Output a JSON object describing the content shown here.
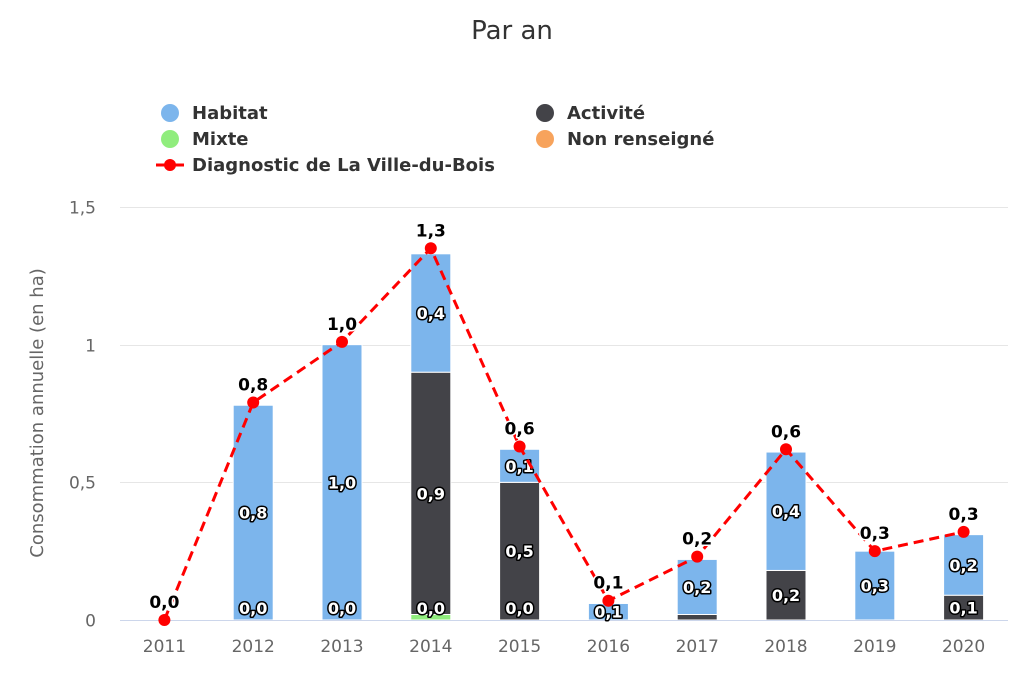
{
  "chart_data": {
    "type": "bar",
    "title": "Par an",
    "xlabel": "",
    "ylabel": "Consommation annuelle (en ha)",
    "ylim": [
      0,
      1.5
    ],
    "yticks": [
      0,
      0.5,
      1,
      1.5
    ],
    "ytick_labels": [
      "0",
      "0,5",
      "1",
      "1,5"
    ],
    "grid": true,
    "legend_position": "top",
    "categories": [
      "2011",
      "2012",
      "2013",
      "2014",
      "2015",
      "2016",
      "2017",
      "2018",
      "2019",
      "2020"
    ],
    "series": [
      {
        "name": "Habitat",
        "type": "bar",
        "stack": true,
        "color": "#7cb5ec",
        "values": [
          0,
          0.78,
          1.0,
          0.43,
          0.12,
          0.06,
          0.2,
          0.43,
          0.25,
          0.22
        ],
        "labels": [
          "",
          "0,8",
          "1,0",
          "0,4",
          "0,1",
          "0,1",
          "0,2",
          "0,4",
          "0,3",
          "0,2"
        ]
      },
      {
        "name": "Activité",
        "type": "bar",
        "stack": true,
        "color": "#434348",
        "values": [
          0,
          0,
          0,
          0.88,
          0.5,
          0,
          0.02,
          0.18,
          0,
          0.09
        ],
        "labels": [
          "",
          "",
          "",
          "0,9",
          "0,5",
          "",
          "",
          "0,2",
          "",
          "0,1"
        ]
      },
      {
        "name": "Mixte",
        "type": "bar",
        "stack": true,
        "color": "#90ed7d",
        "values": [
          0,
          0,
          0,
          0.02,
          0,
          0,
          0,
          0,
          0,
          0
        ],
        "labels": [
          "",
          "0,0",
          "0,0",
          "0,0",
          "0,0",
          "",
          "",
          "",
          "",
          ""
        ]
      },
      {
        "name": "Non renseigné",
        "type": "bar",
        "stack": true,
        "color": "#f7a35c",
        "values": [
          0,
          0,
          0,
          0,
          0,
          0,
          0,
          0,
          0,
          0
        ],
        "labels": [
          "",
          "",
          "",
          "",
          "",
          "",
          "",
          "",
          "",
          ""
        ]
      },
      {
        "name": "Diagnostic de La Ville-du-Bois",
        "type": "line",
        "dashed": true,
        "color": "#ff0000",
        "values": [
          0.0,
          0.79,
          1.01,
          1.35,
          0.63,
          0.07,
          0.23,
          0.62,
          0.25,
          0.32
        ],
        "labels": [
          "0,0",
          "0,8",
          "1,0",
          "1,3",
          "0,6",
          "0,1",
          "0,2",
          "0,6",
          "0,3",
          "0,3"
        ]
      }
    ]
  }
}
